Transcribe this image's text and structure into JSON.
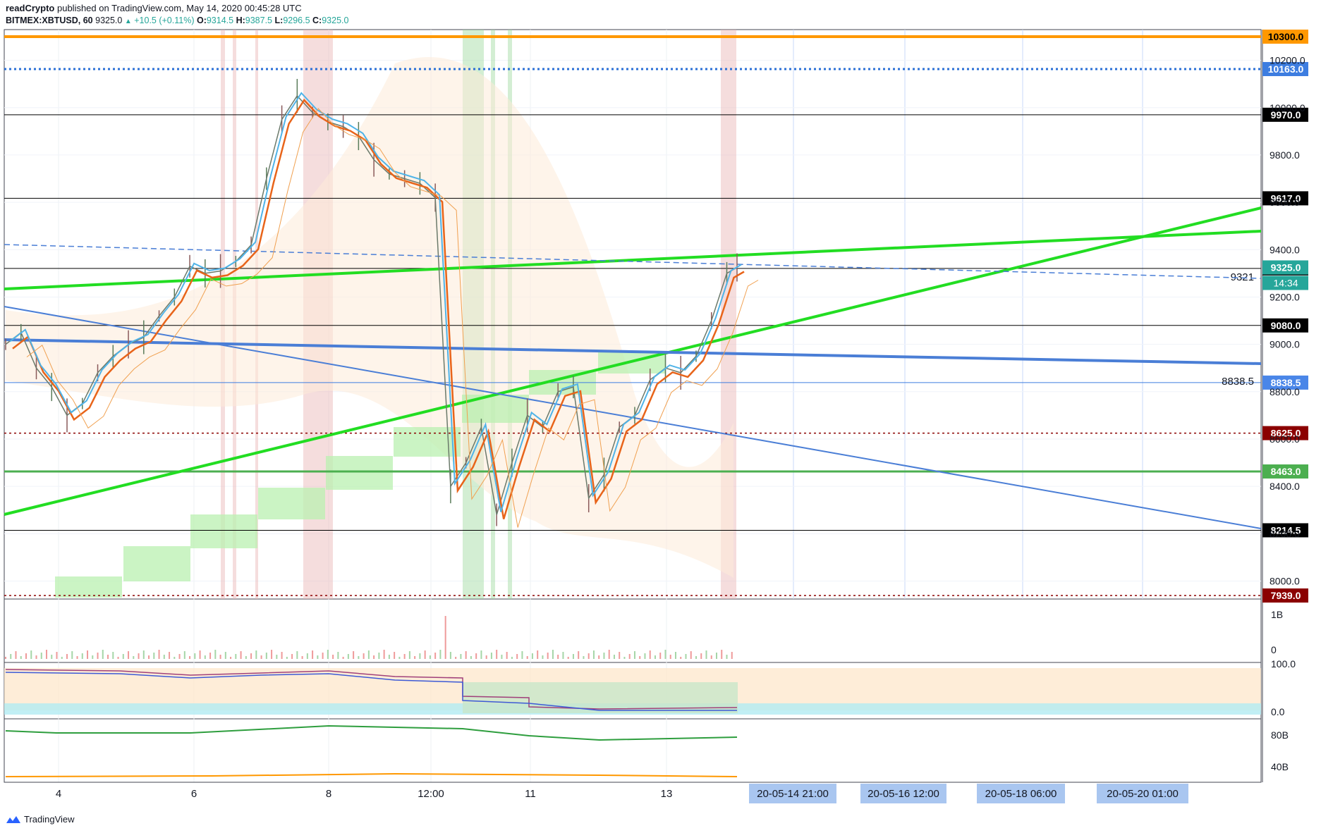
{
  "header": {
    "publisher": "readCrypto",
    "published_text": "published on TradingView.com, May 14, 2020 00:45:28 UTC",
    "symbol": "BITMEX:XBTUSD, 60",
    "last": "9325.0",
    "change": "+10.5 (+0.11%)",
    "o_label": "O:",
    "o": "9314.5",
    "h_label": "H:",
    "h": "9387.5",
    "l_label": "L:",
    "l": "9296.5",
    "c_label": "C:",
    "c": "9325.0"
  },
  "footer": {
    "brand": "TradingView"
  },
  "colors": {
    "orange": "#ff9800",
    "blue": "#4a7ed6",
    "green": "#22dd22",
    "dark_red": "#8b0000",
    "black": "#000000",
    "teal": "#26a69a",
    "ichimoku_cloud": "#b9f0b0"
  },
  "chart_data": [
    {
      "type": "line",
      "pane": "price",
      "ylim": [
        7939,
        10300
      ],
      "y_ticks": [
        "8000.0",
        "8200.0",
        "8400.0",
        "8600.0",
        "8800.0",
        "9000.0",
        "9200.0",
        "9400.0",
        "9600.0",
        "9800.0",
        "10000.0",
        "10200.0"
      ],
      "x_ticks": [
        "4",
        "6",
        "8",
        "12:00",
        "11",
        "13"
      ],
      "projection_labels": [
        "20-05-14   21:00",
        "20-05-16   12:00",
        "20-05-18   06:00",
        "20-05-20   01:00"
      ],
      "horizontal_levels": [
        {
          "value": 10300.0,
          "label": "10300.0",
          "style": "solid",
          "color": "#ff9800",
          "label_bg": "#ff9800",
          "label_fg": "#000000"
        },
        {
          "value": 10163.0,
          "label": "10163.0",
          "style": "dotted",
          "color": "#2a6fd6",
          "label_bg": "#3d7de0",
          "label_fg": "#ffffff"
        },
        {
          "value": 9970.0,
          "label": "9970.0",
          "style": "solid",
          "color": "#000000",
          "label_bg": "#000000",
          "label_fg": "#ffffff"
        },
        {
          "value": 9617.0,
          "label": "9617.0",
          "style": "solid",
          "color": "#000000",
          "label_bg": "#000000",
          "label_fg": "#ffffff"
        },
        {
          "value": 9321.0,
          "label": "9321.0",
          "style": "solid",
          "color": "#000000",
          "label_bg": "#000000",
          "label_fg": "#ffffff"
        },
        {
          "value": 9080.0,
          "label": "9080.0",
          "style": "solid",
          "color": "#000000",
          "label_bg": "#000000",
          "label_fg": "#ffffff"
        },
        {
          "value": 8838.5,
          "label": "8838.5",
          "style": "thin",
          "color": "#3d7de0",
          "label_bg": "#4a86e8",
          "label_fg": "#ffffff"
        },
        {
          "value": 8625.0,
          "label": "8625.0",
          "style": "dotted",
          "color": "#8b0000",
          "label_bg": "#8b0000",
          "label_fg": "#ffffff"
        },
        {
          "value": 8463.0,
          "label": "8463.0",
          "style": "solid",
          "color": "#4caf50",
          "label_bg": "#4caf50",
          "label_fg": "#ffffff"
        },
        {
          "value": 8214.5,
          "label": "8214.5",
          "style": "solid",
          "color": "#000000",
          "label_bg": "#000000",
          "label_fg": "#ffffff"
        },
        {
          "value": 7939.0,
          "label": "7939.0",
          "style": "dotted",
          "color": "#8b0000",
          "label_bg": "#8b0000",
          "label_fg": "#ffffff"
        }
      ],
      "current_price": {
        "value": 9325.0,
        "label": "9325.0",
        "countdown": "14:34"
      },
      "line_labels": [
        {
          "text": "9321",
          "value": 9321.0
        },
        {
          "text": "8838.5",
          "value": 8838.5
        }
      ],
      "price_path": [
        [
          0,
          9000
        ],
        [
          3,
          9050
        ],
        [
          6,
          8900
        ],
        [
          9,
          8820
        ],
        [
          12,
          8700
        ],
        [
          15,
          8750
        ],
        [
          18,
          8880
        ],
        [
          21,
          8950
        ],
        [
          24,
          9000
        ],
        [
          27,
          9030
        ],
        [
          30,
          9120
        ],
        [
          33,
          9200
        ],
        [
          36,
          9330
        ],
        [
          39,
          9300
        ],
        [
          42,
          9310
        ],
        [
          45,
          9350
        ],
        [
          48,
          9420
        ],
        [
          51,
          9700
        ],
        [
          54,
          9950
        ],
        [
          57,
          10050
        ],
        [
          60,
          9980
        ],
        [
          63,
          9940
        ],
        [
          66,
          9920
        ],
        [
          69,
          9880
        ],
        [
          72,
          9780
        ],
        [
          75,
          9720
        ],
        [
          78,
          9700
        ],
        [
          81,
          9680
        ],
        [
          84,
          9620
        ],
        [
          87,
          8400
        ],
        [
          90,
          8500
        ],
        [
          93,
          8650
        ],
        [
          96,
          8280
        ],
        [
          99,
          8500
        ],
        [
          102,
          8700
        ],
        [
          105,
          8650
        ],
        [
          108,
          8800
        ],
        [
          111,
          8820
        ],
        [
          114,
          8350
        ],
        [
          117,
          8450
        ],
        [
          120,
          8650
        ],
        [
          123,
          8700
        ],
        [
          126,
          8850
        ],
        [
          129,
          8900
        ],
        [
          132,
          8880
        ],
        [
          135,
          8950
        ],
        [
          138,
          9100
        ],
        [
          141,
          9300
        ],
        [
          143,
          9325
        ]
      ]
    },
    {
      "type": "bar",
      "pane": "volume",
      "y_ticks": [
        "1B",
        "0"
      ]
    },
    {
      "type": "line",
      "pane": "oscillator",
      "y_ticks": [
        "100.0",
        "0.0"
      ]
    },
    {
      "type": "line",
      "pane": "accumulation",
      "y_ticks": [
        "80B",
        "40B"
      ]
    }
  ]
}
